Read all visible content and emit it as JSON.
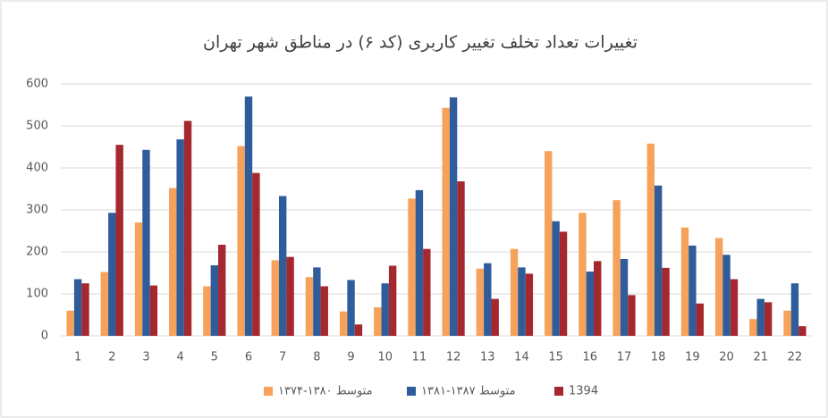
{
  "chart_data": {
    "type": "bar",
    "title": "تغییرات تعداد تخلف تغییر کاربری (کد ۶) در مناطق شهر تهران",
    "categories": [
      "1",
      "2",
      "3",
      "4",
      "5",
      "6",
      "7",
      "8",
      "9",
      "10",
      "11",
      "12",
      "13",
      "14",
      "15",
      "16",
      "17",
      "18",
      "19",
      "20",
      "21",
      "22"
    ],
    "series": [
      {
        "name": "متوسط ۱۳۸۰-۱۳۷۴",
        "color": "#f7a25a",
        "values": [
          60,
          152,
          270,
          352,
          118,
          452,
          180,
          140,
          58,
          68,
          327,
          543,
          160,
          207,
          440,
          293,
          323,
          458,
          258,
          233,
          40,
          60
        ]
      },
      {
        "name": "متوسط ۱۳۸۷-۱۳۸۱",
        "color": "#2f5d9b",
        "values": [
          135,
          293,
          443,
          468,
          168,
          570,
          333,
          163,
          133,
          125,
          347,
          568,
          173,
          163,
          273,
          153,
          183,
          358,
          215,
          193,
          88,
          125
        ]
      },
      {
        "name": "1394",
        "color": "#a4282e",
        "values": [
          125,
          455,
          120,
          512,
          217,
          388,
          188,
          118,
          27,
          167,
          207,
          368,
          88,
          148,
          248,
          178,
          97,
          162,
          77,
          135,
          80,
          23
        ]
      }
    ],
    "ylim": [
      0,
      600
    ],
    "yticks": [
      0,
      100,
      200,
      300,
      400,
      500,
      600
    ],
    "grid": true,
    "legend": "bottom"
  }
}
